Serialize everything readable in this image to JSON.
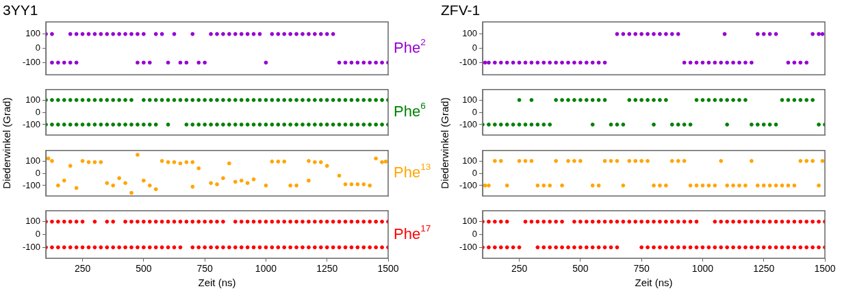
{
  "chart_data": [
    {
      "type": "scatter",
      "marker": "circle",
      "title": "3YY1",
      "xlim": [
        100,
        1500
      ],
      "ylim": [
        -185,
        185
      ],
      "yticks": [
        100,
        0,
        -100
      ],
      "tick_labels": "y",
      "series": [
        {
          "name": "Phe$^{2}$",
          "color": "#9400d3",
          "x": [
            100,
            125,
            200,
            225,
            250,
            275,
            300,
            325,
            350,
            375,
            400,
            425,
            450,
            475,
            500,
            550,
            575,
            625,
            700,
            775,
            800,
            825,
            850,
            875,
            900,
            925,
            950,
            975,
            1025,
            1050,
            1075,
            1100,
            1125,
            1150,
            1175,
            1200,
            1225,
            1250,
            1275,
            125,
            150,
            175,
            200,
            225,
            475,
            500,
            525,
            600,
            650,
            675,
            725,
            750,
            1000,
            1300,
            1325,
            1350,
            1375,
            1400,
            1425,
            1450,
            1475,
            1500
          ],
          "values": [
            100,
            100,
            100,
            100,
            100,
            100,
            100,
            100,
            100,
            100,
            100,
            100,
            100,
            100,
            100,
            100,
            100,
            100,
            100,
            100,
            100,
            100,
            100,
            100,
            100,
            100,
            100,
            100,
            100,
            100,
            100,
            100,
            100,
            100,
            100,
            100,
            100,
            100,
            100,
            -100,
            -100,
            -100,
            -100,
            -100,
            -100,
            -100,
            -100,
            -100,
            -100,
            -100,
            -100,
            -100,
            -100,
            -100,
            -100,
            -100,
            -100,
            -100,
            -100,
            -100,
            -100,
            -100
          ]
        }
      ]
    },
    {
      "type": "scatter",
      "marker": "circle",
      "ylabel": "Diederwinkel (Grad)",
      "xlim": [
        100,
        1500
      ],
      "ylim": [
        -185,
        185
      ],
      "yticks": [
        100,
        0,
        -100
      ],
      "tick_labels": "y",
      "series": [
        {
          "name": "Phe$^{6}$",
          "color": "#008000",
          "x": [
            100,
            125,
            150,
            175,
            200,
            225,
            250,
            275,
            300,
            325,
            350,
            375,
            400,
            425,
            450,
            500,
            525,
            550,
            575,
            600,
            625,
            650,
            675,
            700,
            725,
            750,
            775,
            800,
            825,
            850,
            875,
            900,
            925,
            950,
            975,
            1000,
            1025,
            1050,
            1075,
            1100,
            1125,
            1150,
            1175,
            1200,
            1225,
            1250,
            1275,
            1300,
            1325,
            1350,
            1375,
            1400,
            1425,
            1450,
            1475,
            1500,
            100,
            125,
            150,
            175,
            200,
            225,
            250,
            275,
            300,
            325,
            350,
            375,
            400,
            425,
            450,
            475,
            500,
            525,
            550,
            600,
            675,
            700,
            725,
            750,
            775,
            800,
            825,
            850,
            875,
            900,
            925,
            950,
            975,
            1000,
            1025,
            1050,
            1075,
            1100,
            1125,
            1150,
            1175,
            1200,
            1225,
            1250,
            1275,
            1300,
            1325,
            1350,
            1375,
            1400,
            1425,
            1450,
            1475,
            1500
          ],
          "values": [
            100,
            100,
            100,
            100,
            100,
            100,
            100,
            100,
            100,
            100,
            100,
            100,
            100,
            100,
            100,
            100,
            100,
            100,
            100,
            100,
            100,
            100,
            100,
            100,
            100,
            100,
            100,
            100,
            100,
            100,
            100,
            100,
            100,
            100,
            100,
            100,
            100,
            100,
            100,
            100,
            100,
            100,
            100,
            100,
            100,
            100,
            100,
            100,
            100,
            100,
            100,
            100,
            100,
            100,
            100,
            100,
            -100,
            -100,
            -100,
            -100,
            -100,
            -100,
            -100,
            -100,
            -100,
            -100,
            -100,
            -100,
            -100,
            -100,
            -100,
            -100,
            -100,
            -100,
            -100,
            -100,
            -100,
            -100,
            -100,
            -100,
            -100,
            -100,
            -100,
            -100,
            -100,
            -100,
            -100,
            -100,
            -100,
            -100,
            -100,
            -100,
            -100,
            -100,
            -100,
            -100,
            -100,
            -100,
            -100,
            -100,
            -100,
            -100,
            -100,
            -100,
            -100,
            -100,
            -100,
            -100,
            -100,
            -100
          ]
        }
      ]
    },
    {
      "type": "scatter",
      "xlim": [
        100,
        1500
      ],
      "ylim": [
        -185,
        185
      ],
      "yticks": [
        100,
        0,
        -100
      ],
      "tick_labels": "y",
      "series": [
        {
          "name": "Phe$^{13}$",
          "marker": "circle",
          "color": "#ffa500",
          "x": [
            110,
            125,
            200,
            250,
            275,
            300,
            325,
            475,
            575,
            600,
            625,
            650,
            675,
            700,
            725,
            850,
            1025,
            1050,
            1075,
            1175,
            1200,
            1225,
            1250,
            1450,
            1475,
            1490,
            150,
            175,
            225,
            350,
            375,
            400,
            425,
            450,
            500,
            525,
            550,
            700,
            775,
            800,
            825,
            875,
            900,
            925,
            950,
            1000,
            1100,
            1125,
            1175,
            1300,
            1325,
            1350,
            1375,
            1400,
            1425
          ],
          "values": [
            120,
            100,
            60,
            100,
            90,
            90,
            90,
            150,
            100,
            90,
            90,
            80,
            90,
            90,
            40,
            80,
            95,
            95,
            95,
            100,
            90,
            90,
            60,
            120,
            90,
            95,
            -100,
            -60,
            -120,
            -80,
            -100,
            -40,
            -80,
            -160,
            -60,
            -100,
            -130,
            -110,
            -80,
            -90,
            -40,
            -70,
            -60,
            -80,
            -50,
            -100,
            -100,
            -100,
            -60,
            -20,
            -90,
            -90,
            -90,
            -90,
            -100
          ]
        }
      ]
    },
    {
      "type": "scatter",
      "xlabel": "Zeit (ns)",
      "xlim": [
        100,
        1500
      ],
      "xticks": [
        250,
        500,
        750,
        1000,
        1250,
        1500
      ],
      "ylim": [
        -185,
        185
      ],
      "yticks": [
        100,
        0,
        -100
      ],
      "series": [
        {
          "name": "Phe$^{17}$",
          "marker": "circle",
          "color": "#ff0000",
          "x": [
            100,
            125,
            150,
            175,
            200,
            225,
            250,
            300,
            350,
            375,
            425,
            450,
            475,
            500,
            525,
            550,
            575,
            600,
            625,
            650,
            675,
            700,
            725,
            750,
            775,
            800,
            825,
            875,
            900,
            925,
            950,
            975,
            1000,
            1025,
            1050,
            1075,
            1100,
            1125,
            1150,
            1175,
            1200,
            1225,
            1250,
            1275,
            1300,
            1325,
            1350,
            1375,
            1400,
            1425,
            1450,
            1475,
            1500,
            100,
            125,
            150,
            175,
            200,
            225,
            250,
            275,
            300,
            325,
            350,
            375,
            400,
            425,
            450,
            475,
            500,
            525,
            550,
            575,
            600,
            625,
            650,
            700,
            725,
            750,
            775,
            800,
            825,
            850,
            875,
            900,
            925,
            950,
            975,
            1000,
            1025,
            1050,
            1075,
            1100,
            1125,
            1150,
            1175,
            1200,
            1225,
            1250,
            1275,
            1300,
            1325,
            1350,
            1375,
            1400,
            1425,
            1450,
            1475,
            1500
          ],
          "values": [
            100,
            100,
            100,
            100,
            100,
            100,
            100,
            100,
            100,
            100,
            100,
            100,
            100,
            100,
            100,
            100,
            100,
            100,
            100,
            100,
            100,
            100,
            100,
            100,
            100,
            100,
            100,
            100,
            100,
            100,
            100,
            100,
            100,
            100,
            100,
            100,
            100,
            100,
            100,
            100,
            100,
            100,
            100,
            100,
            100,
            100,
            100,
            100,
            100,
            100,
            100,
            100,
            100,
            -100,
            -100,
            -100,
            -100,
            -100,
            -100,
            -100,
            -100,
            -100,
            -100,
            -100,
            -100,
            -100,
            -100,
            -100,
            -100,
            -100,
            -100,
            -100,
            -100,
            -100,
            -100,
            -100,
            -100,
            -100,
            -100,
            -100,
            -100,
            -100,
            -100,
            -100,
            -100,
            -100,
            -100,
            -100,
            -100,
            -100,
            -100,
            -100,
            -100,
            -100,
            -100,
            -100,
            -100,
            -100,
            -100,
            -100,
            -100,
            -100,
            -100,
            -100,
            -100,
            -100,
            -100,
            -100,
            -100
          ]
        }
      ]
    },
    {
      "type": "scatter",
      "marker": "circle",
      "title": "ZFV-1",
      "xlim": [
        100,
        1500
      ],
      "ylim": [
        -185,
        185
      ],
      "yticks": [
        100,
        0,
        -100
      ],
      "tick_labels": "y",
      "series": [
        {
          "color": "#9400d3",
          "x": [
            650,
            675,
            700,
            725,
            750,
            775,
            800,
            825,
            850,
            875,
            900,
            1090,
            1225,
            1250,
            1275,
            1300,
            1450,
            1475,
            1490,
            110,
            125,
            150,
            175,
            200,
            225,
            250,
            275,
            300,
            325,
            350,
            375,
            400,
            425,
            450,
            475,
            500,
            525,
            550,
            575,
            600,
            925,
            950,
            975,
            1000,
            1025,
            1050,
            1075,
            1100,
            1125,
            1150,
            1175,
            1200,
            1350,
            1375,
            1400,
            1425
          ],
          "values": [
            100,
            100,
            100,
            100,
            100,
            100,
            100,
            100,
            100,
            100,
            100,
            100,
            100,
            100,
            100,
            100,
            100,
            100,
            100,
            -100,
            -100,
            -100,
            -100,
            -100,
            -100,
            -100,
            -100,
            -100,
            -100,
            -100,
            -100,
            -100,
            -100,
            -100,
            -100,
            -100,
            -100,
            -100,
            -100,
            -100,
            -100,
            -100,
            -100,
            -100,
            -100,
            -100,
            -100,
            -100,
            -100,
            -100,
            -100,
            -100,
            -100,
            -100,
            -100,
            -100
          ]
        }
      ]
    },
    {
      "type": "scatter",
      "marker": "circle",
      "ylabel": "Diederwinkel (Grad)",
      "xlim": [
        100,
        1500
      ],
      "ylim": [
        -185,
        185
      ],
      "yticks": [
        100,
        0,
        -100
      ],
      "tick_labels": "y",
      "series": [
        {
          "color": "#008000",
          "x": [
            250,
            300,
            400,
            425,
            450,
            475,
            500,
            525,
            550,
            575,
            600,
            700,
            725,
            750,
            775,
            800,
            825,
            850,
            975,
            1000,
            1025,
            1050,
            1075,
            1100,
            1125,
            1150,
            1175,
            1325,
            1350,
            1375,
            1400,
            1425,
            1450,
            100,
            125,
            150,
            175,
            200,
            225,
            250,
            275,
            300,
            325,
            350,
            375,
            550,
            625,
            650,
            675,
            800,
            875,
            900,
            925,
            950,
            1100,
            1200,
            1225,
            1250,
            1275,
            1300,
            1475,
            1500
          ],
          "values": [
            100,
            100,
            100,
            100,
            100,
            100,
            100,
            100,
            100,
            100,
            100,
            100,
            100,
            100,
            100,
            100,
            100,
            100,
            100,
            100,
            100,
            100,
            100,
            100,
            100,
            100,
            100,
            100,
            100,
            100,
            100,
            100,
            100,
            -100,
            -100,
            -100,
            -100,
            -100,
            -100,
            -100,
            -100,
            -100,
            -100,
            -100,
            -100,
            -100,
            -100,
            -100,
            -100,
            -100,
            -100,
            -100,
            -100,
            -100,
            -100,
            -100,
            -100,
            -100,
            -100,
            -100,
            -100,
            -100
          ]
        }
      ]
    },
    {
      "type": "scatter",
      "xlim": [
        100,
        1500
      ],
      "ylim": [
        -185,
        185
      ],
      "yticks": [
        100,
        0,
        -100
      ],
      "tick_labels": "y",
      "series": [
        {
          "color": "#ffa500",
          "marker": "circle",
          "x": [
            150,
            175,
            250,
            275,
            300,
            400,
            450,
            475,
            500,
            600,
            625,
            650,
            700,
            725,
            750,
            775,
            875,
            900,
            925,
            1075,
            1200,
            1400,
            1425,
            1450,
            1490,
            110,
            125,
            200,
            325,
            350,
            375,
            425,
            550,
            575,
            675,
            800,
            825,
            850,
            950,
            975,
            1000,
            1025,
            1050,
            1100,
            1125,
            1150,
            1175,
            1225,
            1250,
            1275,
            1300,
            1325,
            1350,
            1375,
            1475
          ],
          "values": [
            100,
            100,
            100,
            100,
            100,
            100,
            100,
            100,
            100,
            100,
            100,
            100,
            100,
            100,
            100,
            100,
            100,
            100,
            100,
            100,
            100,
            100,
            100,
            100,
            100,
            -100,
            -100,
            -100,
            -100,
            -100,
            -100,
            -100,
            -100,
            -100,
            -100,
            -100,
            -100,
            -100,
            -100,
            -100,
            -100,
            -100,
            -100,
            -100,
            -100,
            -100,
            -100,
            -100,
            -100,
            -100,
            -100,
            -100,
            -100,
            -100,
            -100
          ]
        }
      ]
    },
    {
      "type": "scatter",
      "xlabel": "Zeit (ns)",
      "xlim": [
        100,
        1500
      ],
      "xticks": [
        250,
        500,
        750,
        1000,
        1250,
        1500
      ],
      "ylim": [
        -185,
        185
      ],
      "yticks": [
        100,
        0,
        -100
      ],
      "series": [
        {
          "color": "#ff0000",
          "marker": "circle",
          "x": [
            100,
            125,
            150,
            175,
            200,
            275,
            300,
            325,
            350,
            375,
            400,
            425,
            475,
            500,
            525,
            550,
            575,
            600,
            625,
            650,
            675,
            700,
            725,
            750,
            775,
            800,
            825,
            850,
            875,
            900,
            925,
            950,
            975,
            1050,
            1075,
            1100,
            1125,
            1150,
            1175,
            1200,
            1225,
            1250,
            1275,
            1300,
            1325,
            1350,
            1375,
            1400,
            1425,
            1450,
            1475,
            1500,
            100,
            125,
            150,
            175,
            200,
            225,
            250,
            325,
            350,
            375,
            400,
            425,
            450,
            475,
            500,
            525,
            550,
            575,
            600,
            625,
            650,
            750,
            775,
            800,
            825,
            850,
            875,
            900,
            925,
            950,
            975,
            1000,
            1025,
            1050,
            1075,
            1100,
            1125,
            1150,
            1175,
            1200,
            1225,
            1250,
            1275,
            1300,
            1325,
            1350,
            1375,
            1400,
            1425,
            1450,
            1475,
            1500
          ],
          "values": [
            100,
            100,
            100,
            100,
            100,
            100,
            100,
            100,
            100,
            100,
            100,
            100,
            100,
            100,
            100,
            100,
            100,
            100,
            100,
            100,
            100,
            100,
            100,
            100,
            100,
            100,
            100,
            100,
            100,
            100,
            100,
            100,
            100,
            100,
            100,
            100,
            100,
            100,
            100,
            100,
            100,
            100,
            100,
            100,
            100,
            100,
            100,
            100,
            100,
            100,
            100,
            100,
            -100,
            -100,
            -100,
            -100,
            -100,
            -100,
            -100,
            -100,
            -100,
            -100,
            -100,
            -100,
            -100,
            -100,
            -100,
            -100,
            -100,
            -100,
            -100,
            -100,
            -100,
            -100,
            -100,
            -100,
            -100,
            -100,
            -100,
            -100,
            -100,
            -100,
            -100,
            -100,
            -100,
            -100,
            -100,
            -100,
            -100,
            -100,
            -100,
            -100,
            -100,
            -100,
            -100,
            -100,
            -100,
            -100,
            -100,
            -100,
            -100,
            -100,
            -100,
            -100
          ]
        }
      ]
    }
  ]
}
